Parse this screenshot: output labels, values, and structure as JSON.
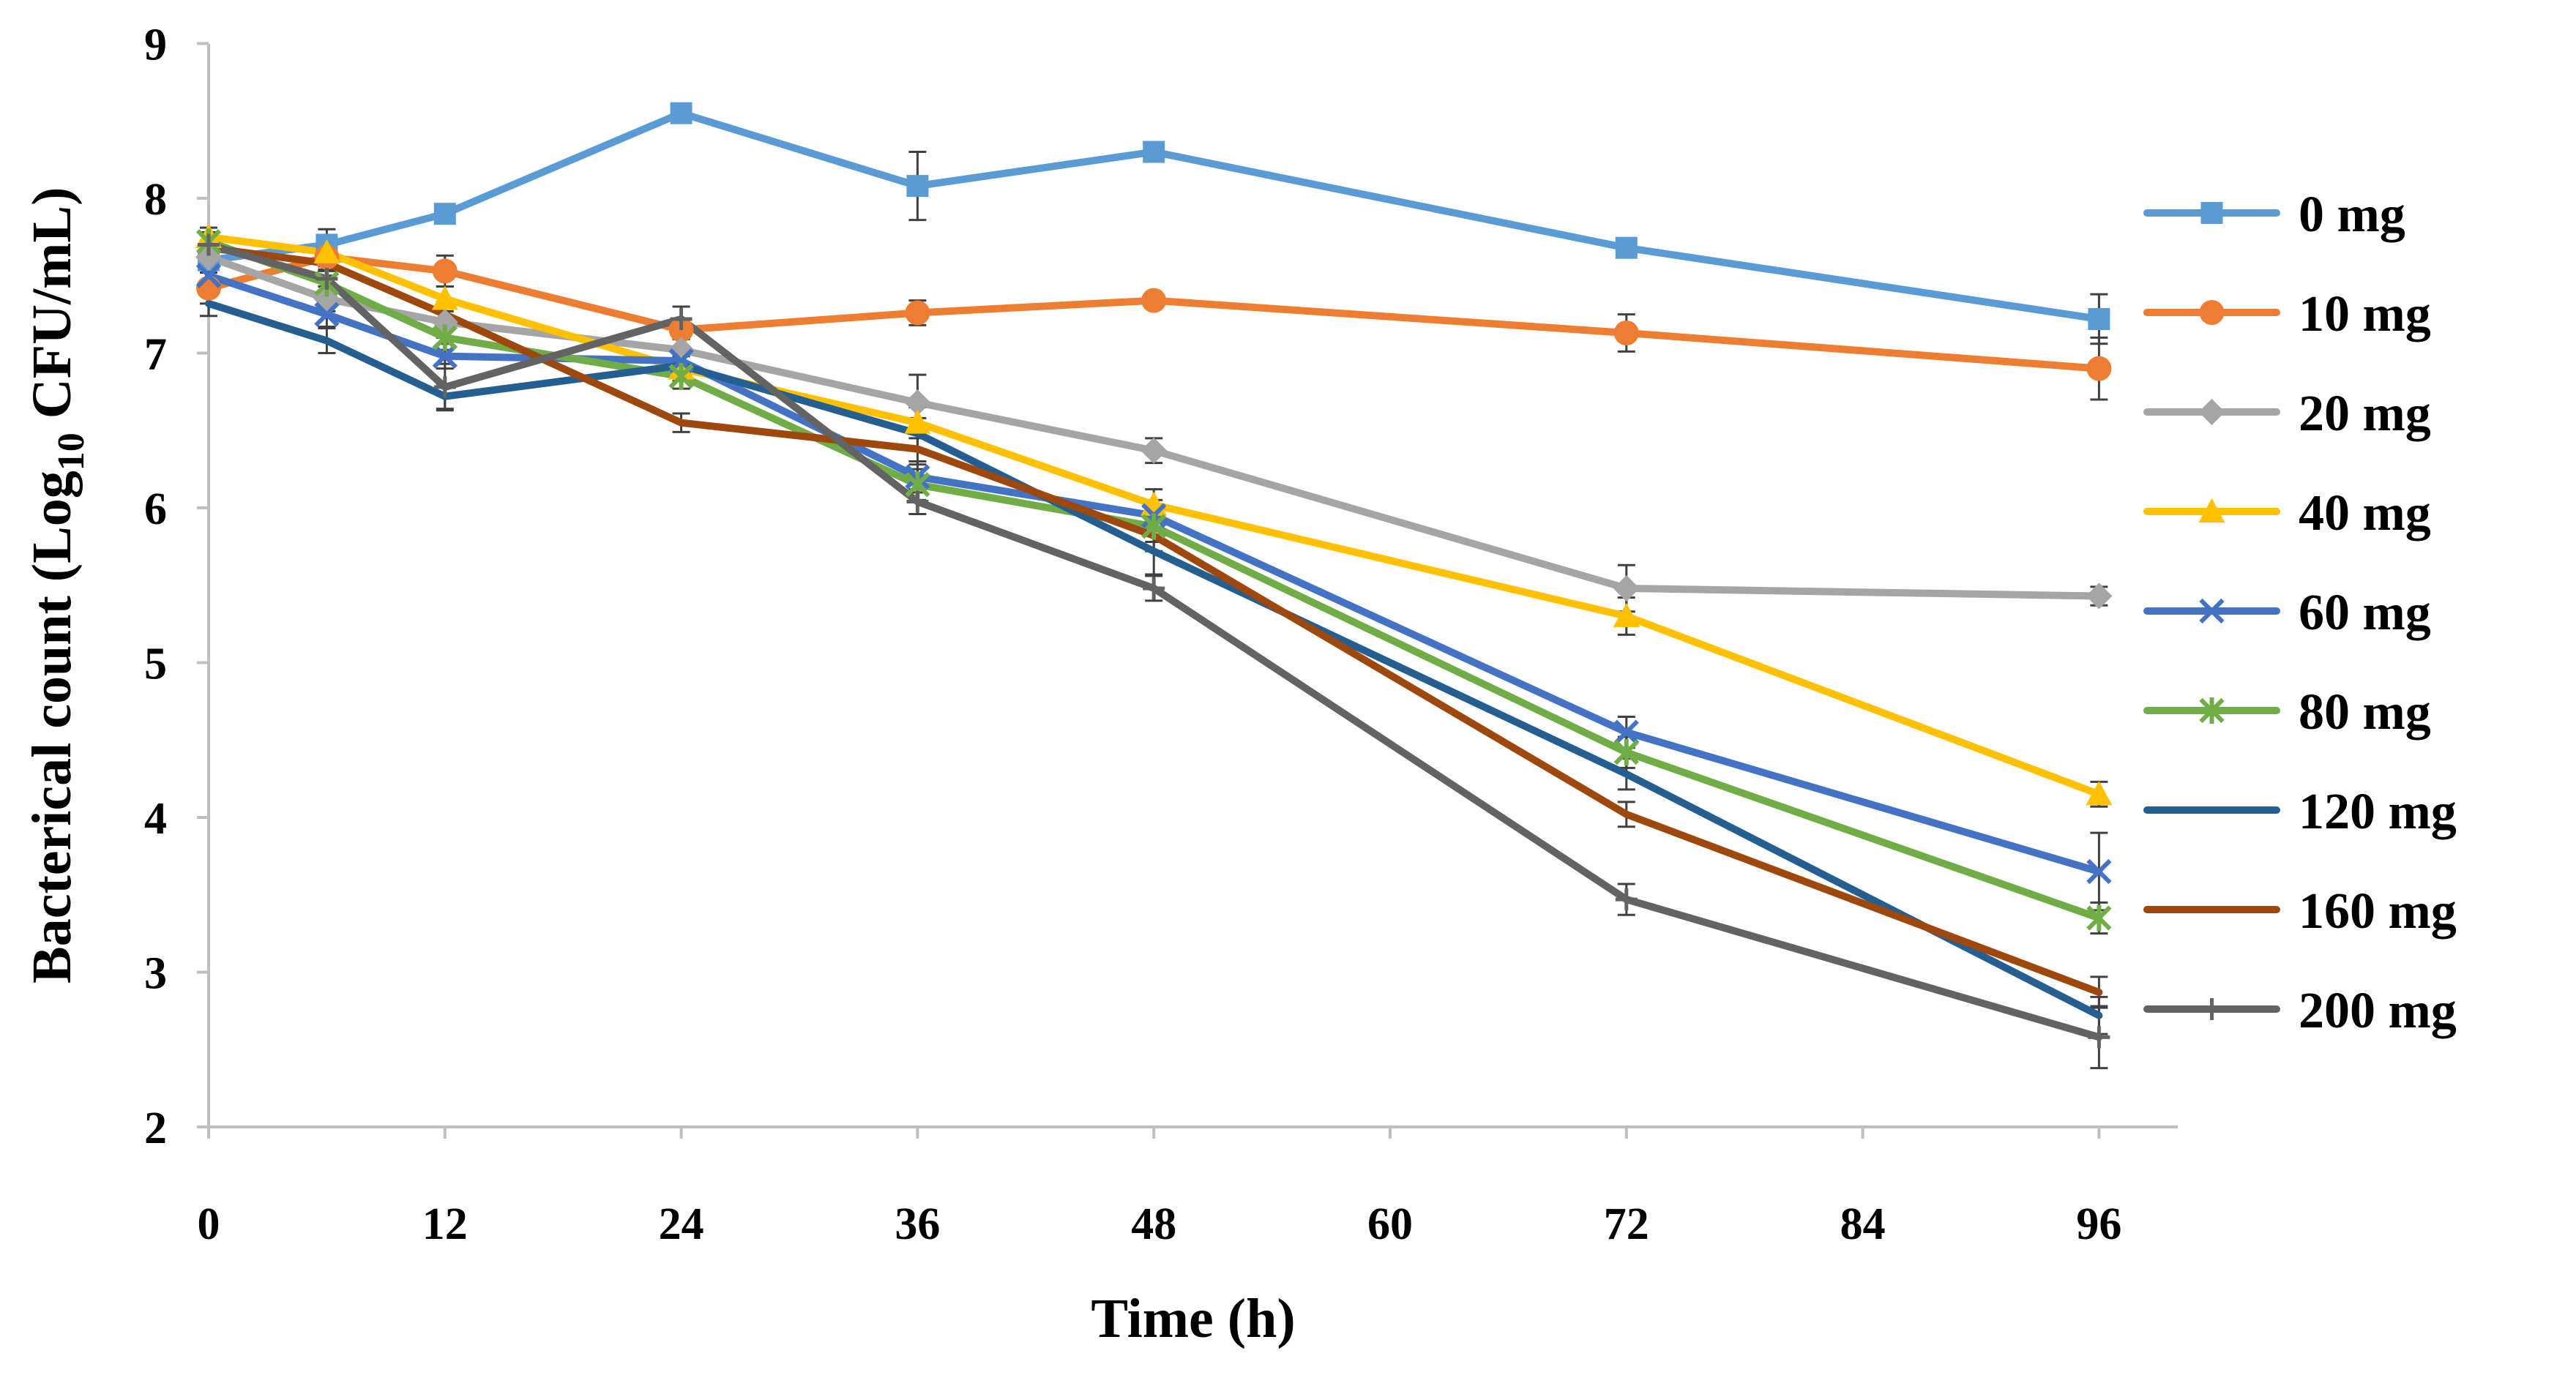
{
  "chart_data": {
    "type": "line",
    "title": "",
    "xlabel": "Time (h)",
    "ylabel": {
      "prefix": "Bacterical count (Log",
      "subscript": "10",
      "suffix": " CFU/mL)"
    },
    "xlim": [
      0,
      100
    ],
    "ylim": [
      2,
      9
    ],
    "x_ticks": [
      0,
      12,
      24,
      36,
      48,
      60,
      72,
      84,
      96
    ],
    "x_tick_labels": [
      "0",
      "12",
      "24",
      "36",
      "48",
      "60",
      "72",
      "84",
      "96"
    ],
    "y_ticks": [
      2,
      3,
      4,
      5,
      6,
      7,
      8,
      9
    ],
    "y_tick_labels": [
      "2",
      "3",
      "4",
      "5",
      "6",
      "7",
      "8",
      "9"
    ],
    "grid": false,
    "legend_position": "right",
    "x": [
      0,
      6,
      12,
      24,
      36,
      48,
      72,
      96
    ],
    "series": [
      {
        "name": "0 mg",
        "color": "#5B9BD5",
        "marker": "square",
        "values": [
          7.6,
          7.7,
          7.9,
          8.55,
          8.08,
          8.3,
          7.68,
          7.22
        ],
        "errors": [
          0.08,
          0.1,
          0.06,
          0.06,
          0.22,
          0.06,
          0.05,
          0.16
        ]
      },
      {
        "name": "10 mg",
        "color": "#ED7D31",
        "marker": "circle",
        "values": [
          7.42,
          7.62,
          7.53,
          7.15,
          7.26,
          7.34,
          7.13,
          6.9
        ],
        "errors": [
          0.1,
          0.08,
          0.1,
          0.06,
          0.08,
          0.05,
          0.12,
          0.2
        ]
      },
      {
        "name": "20 mg",
        "color": "#A5A5A5",
        "marker": "diamond",
        "values": [
          7.62,
          7.35,
          7.2,
          7.02,
          6.68,
          6.37,
          5.48,
          5.43
        ],
        "errors": [
          0.08,
          0.08,
          0.1,
          0.08,
          0.18,
          0.08,
          0.15,
          0.06
        ]
      },
      {
        "name": "40 mg",
        "color": "#FFC000",
        "marker": "triangle",
        "values": [
          7.75,
          7.65,
          7.35,
          6.9,
          6.55,
          6.02,
          5.3,
          4.15
        ],
        "errors": [
          0.06,
          0.06,
          0.08,
          0.08,
          0.1,
          0.1,
          0.12,
          0.08
        ]
      },
      {
        "name": "60 mg",
        "color": "#4472C4",
        "marker": "x",
        "values": [
          7.5,
          7.25,
          6.98,
          6.95,
          6.2,
          5.95,
          4.55,
          3.65
        ],
        "errors": [
          0.08,
          0.08,
          0.08,
          0.08,
          0.1,
          0.1,
          0.1,
          0.25
        ]
      },
      {
        "name": "80 mg",
        "color": "#70AD47",
        "marker": "star",
        "values": [
          7.72,
          7.45,
          7.1,
          6.85,
          6.15,
          5.88,
          4.42,
          3.35
        ],
        "errors": [
          0.06,
          0.08,
          0.08,
          0.08,
          0.1,
          0.1,
          0.1,
          0.1
        ]
      },
      {
        "name": "120 mg",
        "color": "#255E91",
        "marker": "none",
        "values": [
          7.32,
          7.08,
          6.72,
          6.92,
          6.48,
          5.72,
          4.28,
          2.72
        ],
        "errors": [
          0.08,
          0.08,
          0.08,
          0.08,
          0.1,
          0.15,
          0.1,
          0.12
        ]
      },
      {
        "name": "160 mg",
        "color": "#9E480E",
        "marker": "none",
        "values": [
          7.68,
          7.58,
          7.25,
          6.55,
          6.38,
          5.82,
          4.02,
          2.87
        ],
        "errors": [
          0.08,
          0.08,
          0.08,
          0.06,
          0.1,
          0.1,
          0.08,
          0.1
        ]
      },
      {
        "name": "200 mg",
        "color": "#636363",
        "marker": "plus",
        "values": [
          7.7,
          7.48,
          6.78,
          7.22,
          6.04,
          5.48,
          3.47,
          2.58
        ],
        "errors": [
          0.08,
          0.08,
          0.15,
          0.08,
          0.08,
          0.08,
          0.1,
          0.2
        ]
      }
    ]
  }
}
